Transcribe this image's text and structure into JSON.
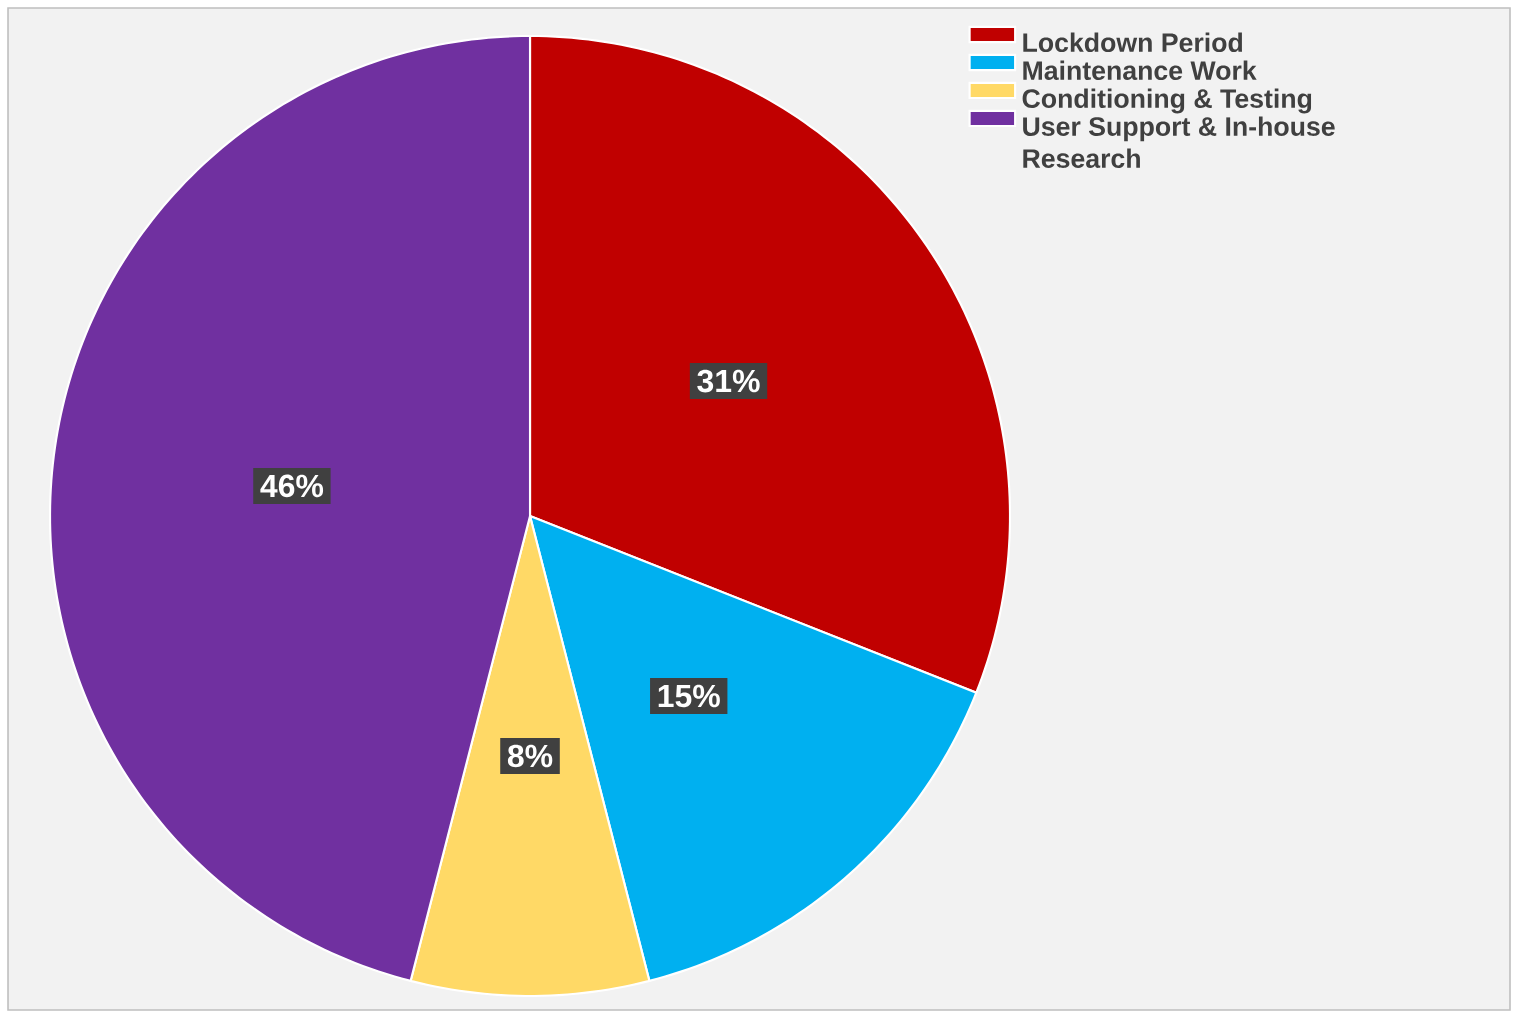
{
  "chart_data": {
    "type": "pie",
    "categories": [
      "Lockdown Period",
      "Maintenance Work",
      "Conditioning & Testing",
      "User Support & In-house Research"
    ],
    "values": [
      31,
      15,
      8,
      46
    ],
    "colors": [
      "#c00000",
      "#00b0f0",
      "#ffd966",
      "#7030a0"
    ],
    "value_labels": [
      "31%",
      "15%",
      "8%",
      "46%"
    ],
    "legend": "top right"
  }
}
